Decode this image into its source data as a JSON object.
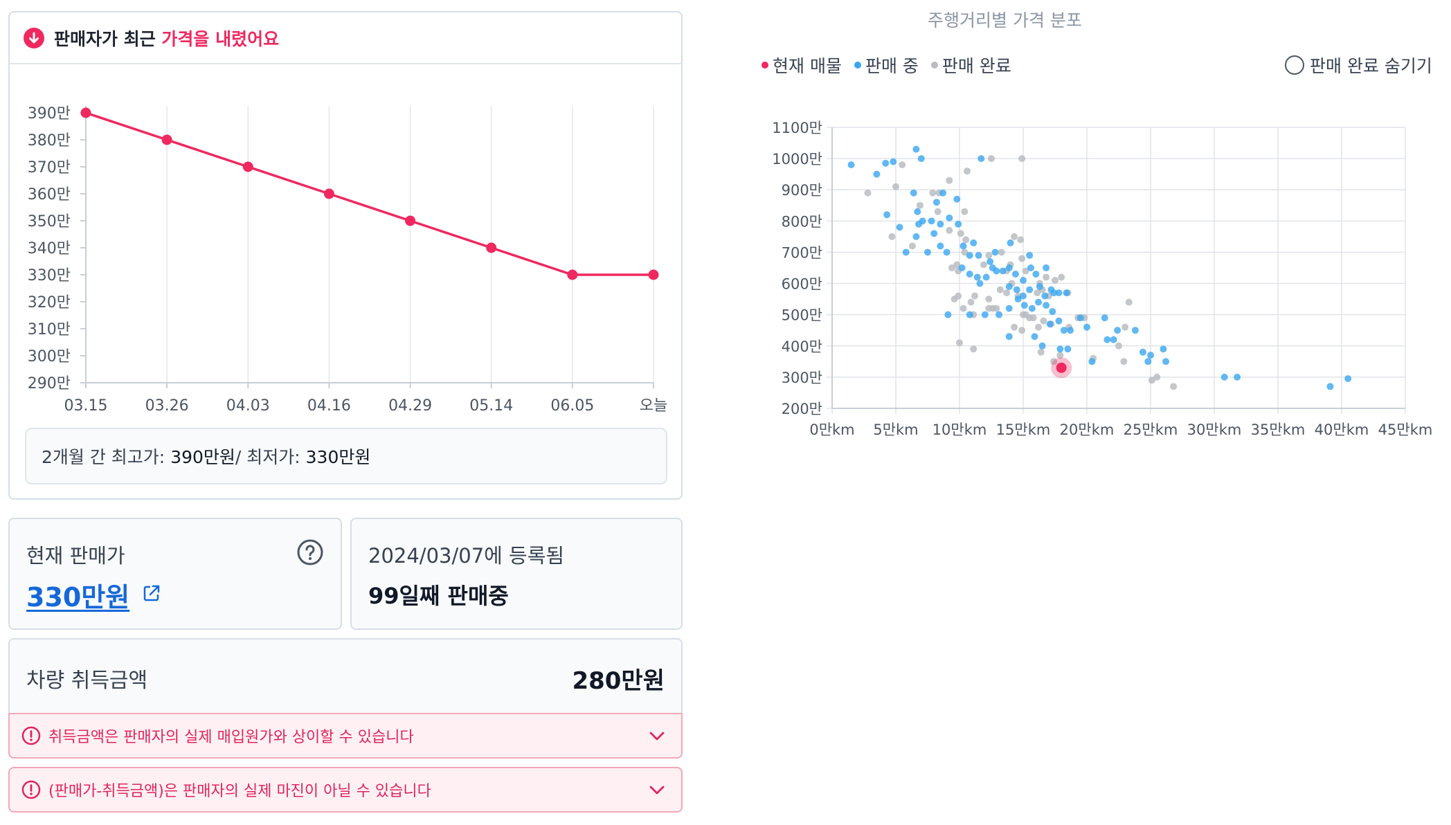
{
  "history": {
    "title_prefix": "판매자가 최근 ",
    "title_highlight": "가격을 내렸어요",
    "minmax_prefix": "2개월 간 최고가: ",
    "max_value": "390만원",
    "minmax_sep": " / 최저가: ",
    "min_value": "330만원"
  },
  "price_card": {
    "label": "현재 판매가",
    "value": "330만원"
  },
  "reg_card": {
    "date": "2024/03/07에 등록됨",
    "days": "99일째 판매중"
  },
  "acq_card": {
    "label": "차량 취득금액",
    "value": "280만원"
  },
  "warnings": [
    "취득금액은 판매자의 실제 매입원가와 상이할 수 있습니다",
    "(판매가-취득금액)은 판매자의 실제 마진이 아닐 수 있습니다"
  ],
  "scatter": {
    "title": "주행거리별 가격 분포",
    "legend": [
      "현재 매물",
      "판매 중",
      "판매 완료"
    ],
    "hide_label": "판매 완료 숨기기"
  },
  "colors": {
    "accent": "#ef2860",
    "link": "#1668d8",
    "selling": "#3aa6f0",
    "sold": "#b9bcc2",
    "current": "#ef2860"
  },
  "chart_data": [
    {
      "type": "line",
      "categories": [
        "03.15",
        "03.26",
        "04.03",
        "04.16",
        "04.29",
        "05.14",
        "06.05",
        "오늘"
      ],
      "series": [
        {
          "values": [
            390,
            380,
            370,
            360,
            350,
            340,
            330,
            330
          ]
        }
      ],
      "ylim": [
        290,
        390
      ],
      "yticks": [
        290,
        300,
        310,
        320,
        330,
        340,
        350,
        360,
        370,
        380,
        390
      ],
      "ytick_labels": [
        "290만",
        "300만",
        "310만",
        "320만",
        "330만",
        "340만",
        "350만",
        "360만",
        "370만",
        "380만",
        "390만"
      ],
      "xlabel": "",
      "ylabel": "",
      "grid": "vertical"
    },
    {
      "type": "scatter",
      "title": "주행거리별 가격 분포",
      "xlim": [
        0,
        45
      ],
      "ylim": [
        200,
        1100
      ],
      "xticks": [
        0,
        5,
        10,
        15,
        20,
        25,
        30,
        35,
        40,
        45
      ],
      "xtick_labels": [
        "0만km",
        "5만km",
        "10만km",
        "15만km",
        "20만km",
        "25만km",
        "30만km",
        "35만km",
        "40만km",
        "45만km"
      ],
      "yticks": [
        200,
        300,
        400,
        500,
        600,
        700,
        800,
        900,
        1000,
        1100
      ],
      "ytick_labels": [
        "200만",
        "300만",
        "400만",
        "500만",
        "600만",
        "700만",
        "800만",
        "900만",
        "1000만",
        "1100만"
      ],
      "grid": true,
      "series": [
        {
          "name": "현재 매물",
          "points": [
            [
              18.0,
              330
            ]
          ]
        },
        {
          "name": "판매 중",
          "points": [
            [
              1.5,
              980
            ],
            [
              3.5,
              950
            ],
            [
              4.2,
              985
            ],
            [
              4.8,
              990
            ],
            [
              6.6,
              1030
            ],
            [
              7.0,
              1000
            ],
            [
              11.7,
              1000
            ],
            [
              4.3,
              820
            ],
            [
              5.3,
              780
            ],
            [
              6.4,
              890
            ],
            [
              6.7,
              830
            ],
            [
              6.8,
              790
            ],
            [
              7.1,
              800
            ],
            [
              7.8,
              800
            ],
            [
              8.2,
              860
            ],
            [
              8.5,
              790
            ],
            [
              8.7,
              890
            ],
            [
              9.2,
              810
            ],
            [
              9.8,
              870
            ],
            [
              9.9,
              790
            ],
            [
              5.8,
              700
            ],
            [
              6.6,
              750
            ],
            [
              7.5,
              700
            ],
            [
              8.0,
              760
            ],
            [
              8.5,
              720
            ],
            [
              9.0,
              700
            ],
            [
              10.3,
              720
            ],
            [
              10.8,
              690
            ],
            [
              11.1,
              730
            ],
            [
              11.5,
              690
            ],
            [
              12.4,
              670
            ],
            [
              12.8,
              700
            ],
            [
              14.0,
              730
            ],
            [
              15.5,
              690
            ],
            [
              10.2,
              650
            ],
            [
              10.8,
              630
            ],
            [
              11.4,
              620
            ],
            [
              11.6,
              600
            ],
            [
              12.1,
              620
            ],
            [
              12.6,
              650
            ],
            [
              12.9,
              640
            ],
            [
              13.4,
              640
            ],
            [
              13.9,
              650
            ],
            [
              14.4,
              630
            ],
            [
              15.0,
              610
            ],
            [
              15.6,
              650
            ],
            [
              16.0,
              630
            ],
            [
              16.8,
              650
            ],
            [
              13.9,
              590
            ],
            [
              14.5,
              580
            ],
            [
              15.0,
              560
            ],
            [
              15.5,
              580
            ],
            [
              16.3,
              590
            ],
            [
              16.7,
              560
            ],
            [
              17.2,
              580
            ],
            [
              17.4,
              570
            ],
            [
              17.8,
              570
            ],
            [
              18.4,
              570
            ],
            [
              9.1,
              500
            ],
            [
              10.8,
              500
            ],
            [
              12.0,
              500
            ],
            [
              13.1,
              500
            ],
            [
              13.9,
              520
            ],
            [
              14.6,
              550
            ],
            [
              15.1,
              530
            ],
            [
              15.7,
              520
            ],
            [
              16.2,
              540
            ],
            [
              16.8,
              530
            ],
            [
              17.3,
              510
            ],
            [
              17.8,
              480
            ],
            [
              18.2,
              450
            ],
            [
              18.7,
              450
            ],
            [
              19.5,
              490
            ],
            [
              13.9,
              430
            ],
            [
              15.9,
              430
            ],
            [
              16.5,
              400
            ],
            [
              17.1,
              470
            ],
            [
              17.9,
              390
            ],
            [
              18.5,
              390
            ],
            [
              20.0,
              460
            ],
            [
              20.4,
              350
            ],
            [
              21.4,
              490
            ],
            [
              21.6,
              420
            ],
            [
              22.1,
              420
            ],
            [
              22.4,
              450
            ],
            [
              23.8,
              450
            ],
            [
              24.4,
              380
            ],
            [
              25.0,
              370
            ],
            [
              24.8,
              350
            ],
            [
              26.0,
              390
            ],
            [
              26.2,
              350
            ],
            [
              30.8,
              300
            ],
            [
              31.8,
              300
            ],
            [
              39.1,
              270
            ],
            [
              40.5,
              295
            ]
          ]
        },
        {
          "name": "판매 완료",
          "points": [
            [
              2.8,
              890
            ],
            [
              5.0,
              910
            ],
            [
              5.5,
              980
            ],
            [
              8.4,
              890
            ],
            [
              9.2,
              930
            ],
            [
              10.6,
              960
            ],
            [
              12.5,
              1000
            ],
            [
              14.9,
              1000
            ],
            [
              4.7,
              750
            ],
            [
              6.3,
              720
            ],
            [
              6.9,
              850
            ],
            [
              7.9,
              890
            ],
            [
              8.3,
              830
            ],
            [
              9.2,
              770
            ],
            [
              10.4,
              830
            ],
            [
              10.1,
              760
            ],
            [
              10.5,
              740
            ],
            [
              14.3,
              750
            ],
            [
              14.8,
              740
            ],
            [
              9.4,
              650
            ],
            [
              9.8,
              660
            ],
            [
              9.9,
              640
            ],
            [
              10.4,
              700
            ],
            [
              11.9,
              660
            ],
            [
              12.3,
              690
            ],
            [
              13.3,
              700
            ],
            [
              13.7,
              640
            ],
            [
              14.0,
              660
            ],
            [
              14.9,
              680
            ],
            [
              15.2,
              640
            ],
            [
              16.3,
              600
            ],
            [
              16.8,
              620
            ],
            [
              17.5,
              610
            ],
            [
              18.0,
              620
            ],
            [
              9.6,
              550
            ],
            [
              9.9,
              560
            ],
            [
              10.9,
              540
            ],
            [
              11.2,
              560
            ],
            [
              12.3,
              550
            ],
            [
              12.6,
              520
            ],
            [
              13.2,
              580
            ],
            [
              13.7,
              570
            ],
            [
              14.1,
              600
            ],
            [
              14.6,
              560
            ],
            [
              15.0,
              500
            ],
            [
              15.5,
              490
            ],
            [
              16.1,
              570
            ],
            [
              16.5,
              580
            ],
            [
              17.0,
              560
            ],
            [
              18.5,
              570
            ],
            [
              10.3,
              520
            ],
            [
              11.1,
              500
            ],
            [
              12.3,
              520
            ],
            [
              12.9,
              520
            ],
            [
              14.3,
              460
            ],
            [
              15.2,
              500
            ],
            [
              15.8,
              490
            ],
            [
              16.2,
              460
            ],
            [
              16.6,
              480
            ],
            [
              17.2,
              470
            ],
            [
              18.6,
              460
            ],
            [
              19.3,
              490
            ],
            [
              19.8,
              490
            ],
            [
              10.0,
              410
            ],
            [
              11.1,
              390
            ],
            [
              14.9,
              450
            ],
            [
              16.4,
              380
            ],
            [
              17.4,
              350
            ],
            [
              17.9,
              370
            ],
            [
              20.5,
              360
            ],
            [
              22.5,
              400
            ],
            [
              23.0,
              460
            ],
            [
              23.3,
              540
            ],
            [
              25.1,
              290
            ],
            [
              25.5,
              300
            ],
            [
              26.8,
              270
            ],
            [
              22.9,
              350
            ]
          ]
        }
      ]
    }
  ]
}
